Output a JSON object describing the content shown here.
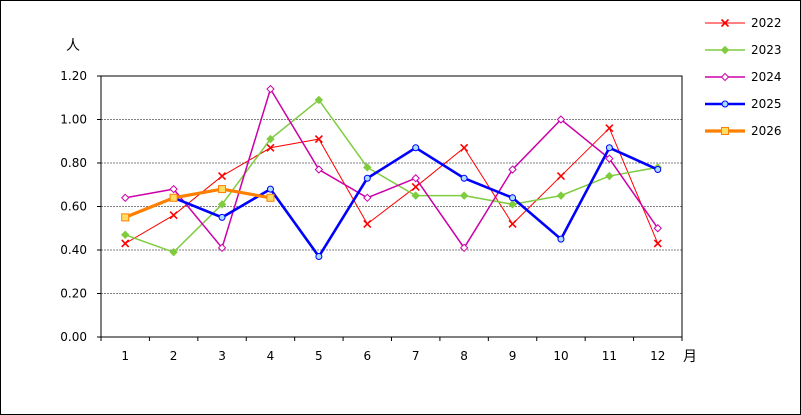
{
  "chart_data": {
    "type": "line",
    "y_unit": "人",
    "x_unit": "月",
    "categories": [
      "1",
      "2",
      "3",
      "4",
      "5",
      "6",
      "7",
      "8",
      "9",
      "10",
      "11",
      "12"
    ],
    "ylim": [
      0,
      1.2
    ],
    "yticks": [
      "0.00",
      "0.20",
      "0.40",
      "0.60",
      "0.80",
      "1.00",
      "1.20"
    ],
    "grid": true,
    "legend_position": "right",
    "series": [
      {
        "name": "2022",
        "color": "#ff0000",
        "marker": "x",
        "values": [
          0.43,
          0.56,
          0.74,
          0.87,
          0.91,
          0.52,
          0.69,
          0.87,
          0.52,
          0.74,
          0.96,
          0.43
        ]
      },
      {
        "name": "2023",
        "color": "#7fcc3f",
        "marker": "diamond",
        "values": [
          0.47,
          0.39,
          0.61,
          0.91,
          1.09,
          0.78,
          0.65,
          0.65,
          0.61,
          0.65,
          0.74,
          0.78
        ]
      },
      {
        "name": "2024",
        "color": "#cc00a8",
        "marker": "diamond-open",
        "values": [
          0.64,
          0.68,
          0.41,
          1.14,
          0.77,
          0.64,
          0.73,
          0.41,
          0.77,
          1.0,
          0.82,
          0.5
        ]
      },
      {
        "name": "2025",
        "color": "#0000ff",
        "marker": "circle",
        "values": [
          0.55,
          0.64,
          0.55,
          0.68,
          0.37,
          0.73,
          0.87,
          0.73,
          0.64,
          0.45,
          0.87,
          0.77
        ]
      },
      {
        "name": "2026",
        "color": "#ff7f00",
        "marker": "square",
        "values": [
          0.55,
          0.64,
          0.68,
          0.64,
          null,
          null,
          null,
          null,
          null,
          null,
          null,
          null
        ]
      }
    ]
  }
}
